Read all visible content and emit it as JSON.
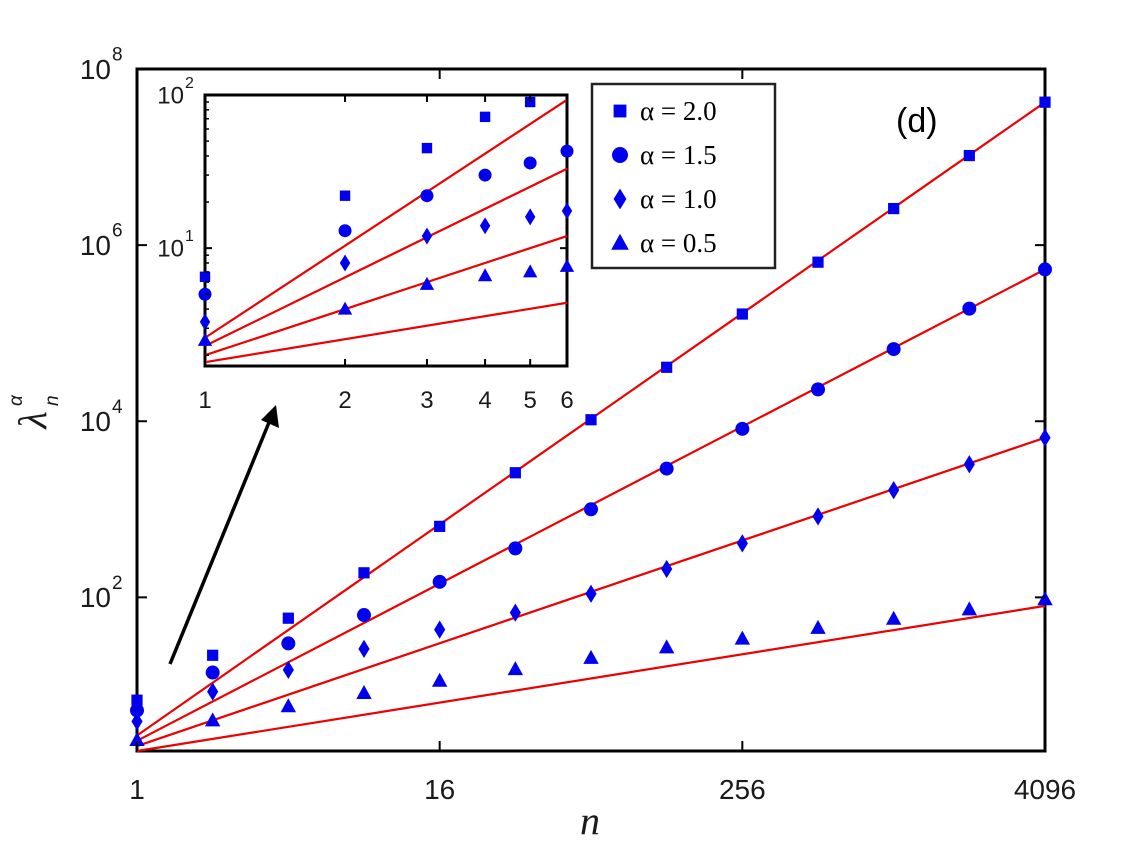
{
  "chart_data": [
    {
      "type": "scatter",
      "panel_label": "(d)",
      "xlabel": "n",
      "ylabel": "λ_n^α",
      "ylabel_main": "λ",
      "ylabel_sub": "n",
      "ylabel_sup": "α",
      "xscale": "log2",
      "yscale": "log10",
      "xlim": [
        1,
        4096
      ],
      "ylim": [
        1.8,
        100000000
      ],
      "xticks": [
        {
          "value": 1,
          "label": "1"
        },
        {
          "value": 16,
          "label": "16"
        },
        {
          "value": 256,
          "label": "256"
        },
        {
          "value": 4096,
          "label": "4096"
        }
      ],
      "yticks": [
        {
          "value": 100,
          "base": "10",
          "exp": "2"
        },
        {
          "value": 10000,
          "base": "10",
          "exp": "4"
        },
        {
          "value": 1000000,
          "base": "10",
          "exp": "6"
        },
        {
          "value": 100000000,
          "base": "10",
          "exp": "8"
        }
      ],
      "legend_position": "top-right",
      "x": [
        1,
        2,
        4,
        8,
        16,
        32,
        64,
        128,
        256,
        512,
        1024,
        2048,
        4096
      ],
      "series": [
        {
          "name": "α = 2.0",
          "marker": "square",
          "values": [
            6.8,
            22,
            58,
            190,
            640,
            2600,
            10400,
            41000,
            165000,
            640000,
            2600000,
            10400000,
            42000000
          ]
        },
        {
          "name": "α = 1.5",
          "marker": "circle",
          "values": [
            5.2,
            14,
            30,
            63,
            150,
            360,
            1000,
            2900,
            8200,
            23000,
            66000,
            190000,
            530000
          ]
        },
        {
          "name": "α = 1.0",
          "marker": "diamond",
          "values": [
            3.9,
            8.5,
            15,
            26,
            43,
            67,
            110,
            210,
            410,
            830,
            1650,
            3250,
            6500
          ]
        },
        {
          "name": "α = 0.5",
          "marker": "triangle",
          "values": [
            2.4,
            4.0,
            5.8,
            8.2,
            11.3,
            15.3,
            20.5,
            27,
            34,
            45,
            57,
            73,
            95
          ]
        }
      ],
      "fit_lines": [
        {
          "series": "α = 2.0",
          "start": [
            1,
            2.7
          ],
          "end": [
            4096,
            42000000
          ]
        },
        {
          "series": "α = 1.5",
          "start": [
            1,
            2.35
          ],
          "end": [
            4096,
            530000
          ]
        },
        {
          "series": "α = 1.0",
          "start": [
            1,
            2.05
          ],
          "end": [
            4096,
            6500
          ]
        },
        {
          "series": "α = 0.5",
          "start": [
            1,
            1.8
          ],
          "end": [
            4096,
            80
          ]
        }
      ],
      "colors": {
        "markers": "#0000ee",
        "fit": "#ee0000",
        "axes": "#000000"
      }
    },
    {
      "type": "scatter",
      "role": "inset",
      "xscale": "log",
      "yscale": "log10",
      "xlim": [
        1,
        6
      ],
      "ylim": [
        1.7,
        100
      ],
      "xticks": [
        {
          "value": 1,
          "label": "1"
        },
        {
          "value": 2,
          "label": "2"
        },
        {
          "value": 3,
          "label": "3"
        },
        {
          "value": 4,
          "label": "4"
        },
        {
          "value": 5,
          "label": "5"
        },
        {
          "value": 6,
          "label": "6"
        }
      ],
      "yticks": [
        {
          "value": 10,
          "base": "10",
          "exp": "1"
        },
        {
          "value": 100,
          "base": "10",
          "exp": "2"
        }
      ],
      "x": [
        1,
        2,
        3,
        4,
        5,
        6
      ],
      "series": [
        {
          "name": "α = 2.0",
          "marker": "square",
          "values": [
            6.5,
            22,
            45,
            72,
            90,
            null
          ]
        },
        {
          "name": "α = 1.5",
          "marker": "circle",
          "values": [
            5.0,
            13,
            22,
            30,
            36,
            43
          ]
        },
        {
          "name": "α = 1.0",
          "marker": "diamond",
          "values": [
            3.3,
            8.0,
            12,
            14,
            16,
            17.5
          ]
        },
        {
          "name": "α = 0.5",
          "marker": "triangle",
          "values": [
            2.5,
            4.0,
            5.8,
            6.6,
            7.0,
            7.6
          ]
        }
      ],
      "fit_lines": [
        {
          "series": "α = 2.0",
          "start": [
            1,
            2.6
          ],
          "end": [
            6,
            93
          ]
        },
        {
          "series": "α = 1.5",
          "start": [
            1,
            2.3
          ],
          "end": [
            6,
            33
          ]
        },
        {
          "series": "α = 1.0",
          "start": [
            1,
            2.0
          ],
          "end": [
            6,
            12
          ]
        },
        {
          "series": "α = 0.5",
          "start": [
            1,
            1.8
          ],
          "end": [
            6,
            4.4
          ]
        }
      ]
    }
  ]
}
